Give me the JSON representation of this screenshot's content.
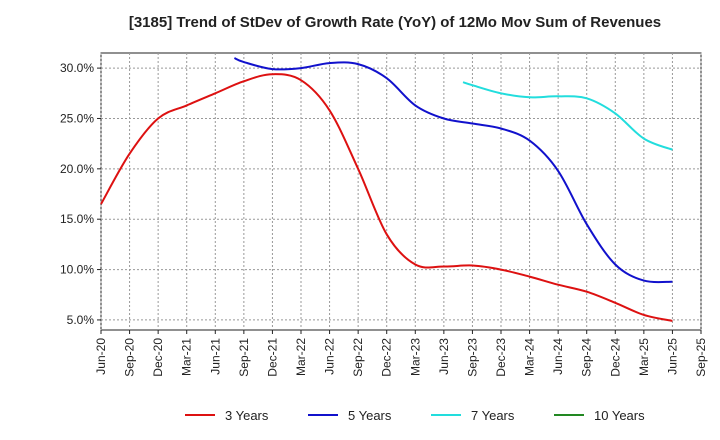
{
  "chart_data": {
    "type": "line",
    "title": "[3185]  Trend of StDev of Growth Rate (YoY) of 12Mo Mov Sum of Revenues",
    "xlabel": "",
    "ylabel": "",
    "ylim": [
      4.0,
      31.5
    ],
    "y_ticks": [
      5.0,
      10.0,
      15.0,
      20.0,
      25.0,
      30.0
    ],
    "y_tick_labels": [
      "5.0%",
      "10.0%",
      "15.0%",
      "20.0%",
      "25.0%",
      "30.0%"
    ],
    "x_tick_labels": [
      "Jun-20",
      "Sep-20",
      "Dec-20",
      "Mar-21",
      "Jun-21",
      "Sep-21",
      "Dec-21",
      "Mar-22",
      "Jun-22",
      "Sep-22",
      "Dec-22",
      "Mar-23",
      "Jun-23",
      "Sep-23",
      "Dec-23",
      "Mar-24",
      "Jun-24",
      "Sep-24",
      "Dec-24",
      "Mar-25",
      "Jun-25",
      "Sep-25"
    ],
    "grid": true,
    "legend_position": "bottom",
    "series": [
      {
        "name": "3 Years",
        "color": "#dd1111",
        "points": [
          [
            0,
            16.5
          ],
          [
            1,
            21.5
          ],
          [
            2,
            25.0
          ],
          [
            3,
            26.3
          ],
          [
            4,
            27.5
          ],
          [
            5,
            28.7
          ],
          [
            6,
            29.4
          ],
          [
            7,
            28.8
          ],
          [
            8,
            25.8
          ],
          [
            9,
            20.0
          ],
          [
            10,
            13.5
          ],
          [
            11,
            10.5
          ],
          [
            12,
            10.3
          ],
          [
            13,
            10.4
          ],
          [
            14,
            10.0
          ],
          [
            15,
            9.3
          ],
          [
            16,
            8.5
          ],
          [
            17,
            7.8
          ],
          [
            18,
            6.7
          ],
          [
            19,
            5.5
          ],
          [
            20,
            4.9
          ]
        ]
      },
      {
        "name": "5 Years",
        "color": "#1111cc",
        "points": [
          [
            4.67,
            31.0
          ],
          [
            5,
            30.6
          ],
          [
            6,
            29.9
          ],
          [
            7,
            30.0
          ],
          [
            8,
            30.5
          ],
          [
            9,
            30.4
          ],
          [
            10,
            29.0
          ],
          [
            11,
            26.3
          ],
          [
            12,
            25.0
          ],
          [
            13,
            24.5
          ],
          [
            14,
            24.0
          ],
          [
            15,
            22.8
          ],
          [
            16,
            19.8
          ],
          [
            17,
            14.5
          ],
          [
            18,
            10.5
          ],
          [
            19,
            8.9
          ],
          [
            20,
            8.8
          ]
        ]
      },
      {
        "name": "7 Years",
        "color": "#22dddd",
        "points": [
          [
            12.67,
            28.6
          ],
          [
            13,
            28.3
          ],
          [
            14,
            27.5
          ],
          [
            15,
            27.1
          ],
          [
            16,
            27.2
          ],
          [
            17,
            27.0
          ],
          [
            18,
            25.5
          ],
          [
            19,
            23.0
          ],
          [
            20,
            21.9
          ]
        ]
      },
      {
        "name": "10 Years",
        "color": "#228822",
        "points": []
      }
    ]
  }
}
